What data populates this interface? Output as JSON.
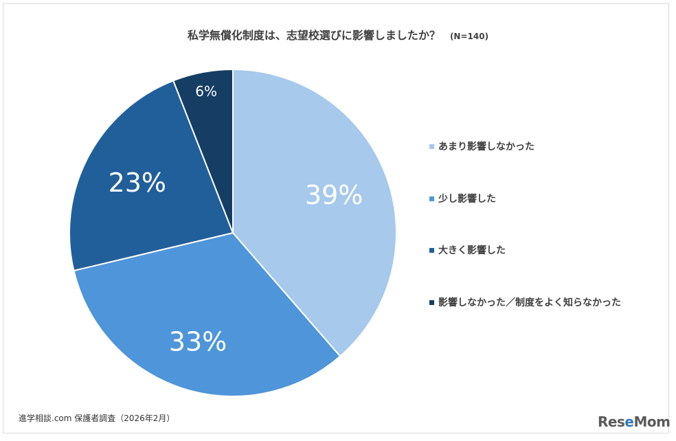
{
  "title": "私学無償化制度は、志望校選びに影響しましたか？",
  "sample_size": "(N=140)",
  "source": "進学相談.com 保護者調査（2026年2月）",
  "logo": "ReseMom",
  "chart_data": {
    "type": "pie",
    "title": "私学無償化制度は、志望校選びに影響しましたか？",
    "slices": [
      {
        "label": "あまり影響しなかった",
        "value": 39,
        "display": "39%",
        "color": "#a6c9ec"
      },
      {
        "label": "少し影響した",
        "value": 33,
        "display": "33%",
        "color": "#4e95d9"
      },
      {
        "label": "大きく影響した",
        "value": 23,
        "display": "23%",
        "color": "#215f9a"
      },
      {
        "label": "影響しなかった／制度をよく知らなかった",
        "value": 6,
        "display": "6%",
        "color": "#163e64"
      }
    ],
    "start": "top",
    "direction": "clockwise",
    "legend_position": "right"
  }
}
